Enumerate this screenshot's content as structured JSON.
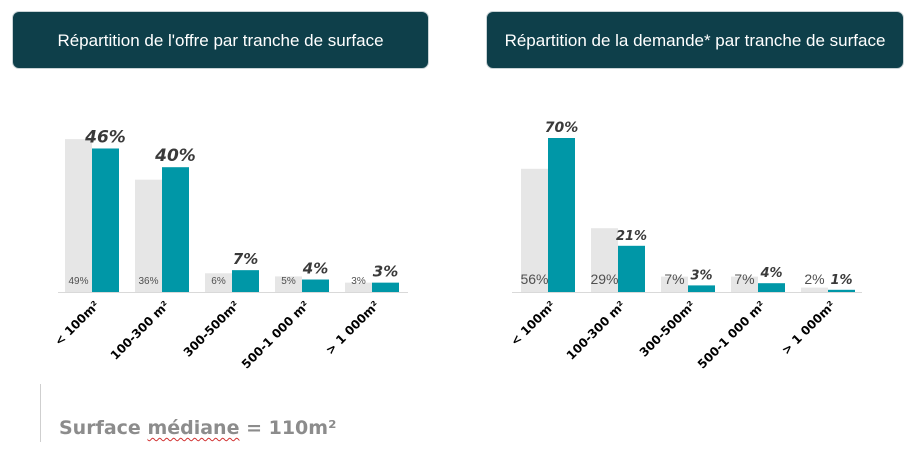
{
  "colors": {
    "accent": "#0097a7",
    "ghost": "#e6e6e6",
    "header_bg": "#0e3f4a"
  },
  "headers": {
    "offre": "Répartition de l'offre par tranche de surface",
    "demande": "Répartition de la demande* par tranche de surface"
  },
  "chart_data": [
    {
      "type": "bar",
      "categories": [
        "< 100m²",
        "100-300 m²",
        "300-500m²",
        "500-1 000 m²",
        "> 1 000m²"
      ],
      "series": [
        {
          "values": [
            49,
            36,
            6,
            5,
            3
          ],
          "labels": [
            "49%",
            "36%",
            "6%",
            "5%",
            "3%"
          ]
        },
        {
          "values": [
            46,
            40,
            7,
            4,
            3
          ],
          "labels": [
            "46%",
            "40%",
            "7%",
            "4%",
            "3%"
          ]
        }
      ],
      "title": "Répartition de l'offre par tranche de surface",
      "ylim": [
        0,
        50
      ]
    },
    {
      "type": "bar",
      "categories": [
        "< 100m²",
        "100-300 m²",
        "300-500m²",
        "500-1 000 m²",
        "> 1 000m²"
      ],
      "series": [
        {
          "values": [
            56,
            29,
            7,
            7,
            2
          ],
          "labels": [
            "56%",
            "29%",
            "7%",
            "7%",
            "2%"
          ]
        },
        {
          "values": [
            70,
            21,
            3,
            4,
            1
          ],
          "labels": [
            "70%",
            "21%",
            "3%",
            "4%",
            "1%"
          ]
        }
      ],
      "title": "Répartition de la demande* par tranche de surface",
      "ylim": [
        0,
        70
      ]
    }
  ],
  "median": {
    "prefix": "Surface ",
    "word": "médiane",
    "suffix": " = 110m²"
  }
}
